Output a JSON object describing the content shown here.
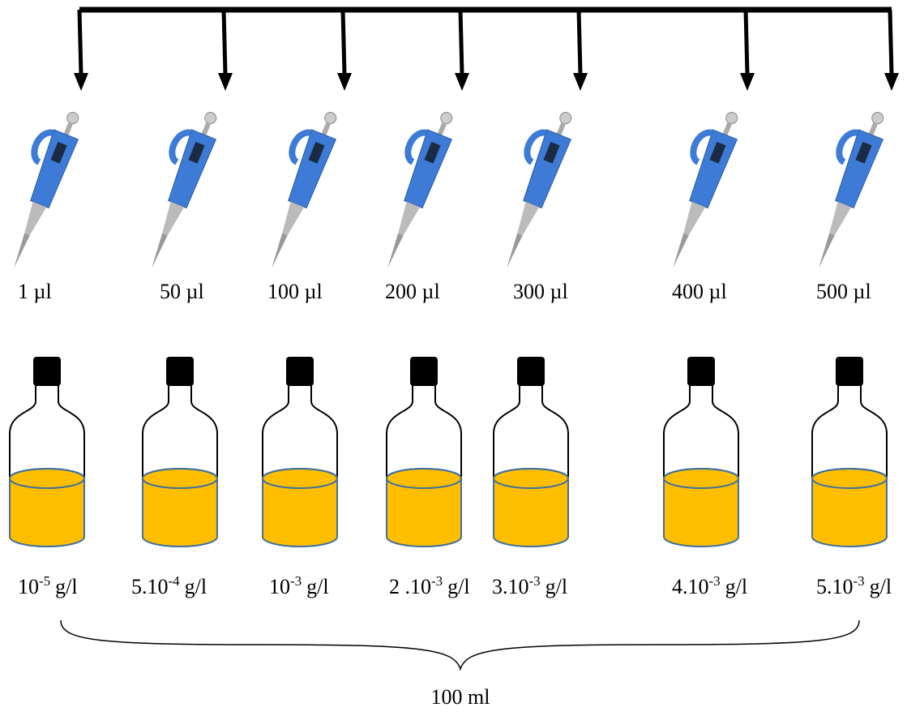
{
  "volumes": [
    "1 µl",
    "50 µl",
    "100 µl",
    "200 µl",
    "300 µl",
    "400 µl",
    "500 µl"
  ],
  "concentrations": [
    {
      "base": "10",
      "exp": "-5",
      "unit": "g/l"
    },
    {
      "base": "5.10",
      "exp": "-4",
      "unit": "g/l"
    },
    {
      "base": "10",
      "exp": "-3",
      "unit": "g/l"
    },
    {
      "base": "2 .10",
      "exp": "-3",
      "unit": "g/l"
    },
    {
      "base": "3.10",
      "exp": "-3",
      "unit": "g/l"
    },
    {
      "base": "4.10",
      "exp": "-3",
      "unit": "g/l"
    },
    {
      "base": "5.10",
      "exp": "-3",
      "unit": "g/l"
    }
  ],
  "total_volume": "100 ml"
}
